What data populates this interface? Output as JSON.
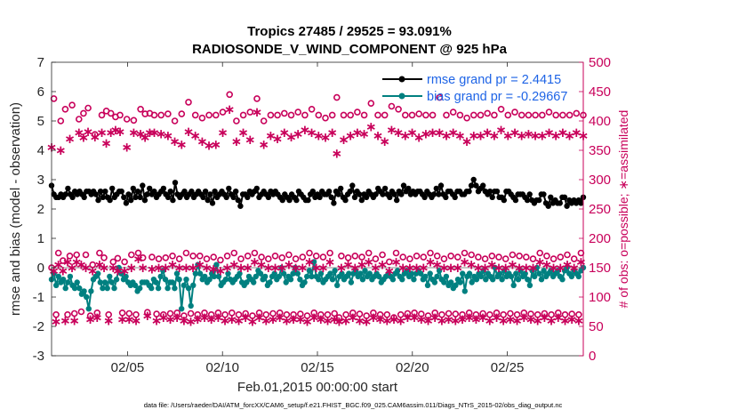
{
  "chart_data": {
    "type": "line",
    "title": "Tropics 27485 / 29525 = 93.091%",
    "subtitle": "RADIOSONDE_V_WIND_COMPONENT @ 925 hPa",
    "xlabel": "Feb.01,2015 00:00:00 start",
    "ylabel": "rmse and bias (model - observation)",
    "y2label": "# of obs: o=possible; ∗=assimilated",
    "xlim": [
      1,
      29
    ],
    "ylim": [
      -3,
      7
    ],
    "y2lim": [
      0,
      500
    ],
    "xticks": [
      5,
      10,
      15,
      20,
      25
    ],
    "xtick_labels": [
      "02/05",
      "02/10",
      "02/15",
      "02/20",
      "02/25"
    ],
    "yticks": [
      -3,
      -2,
      -1,
      0,
      1,
      2,
      3,
      4,
      5,
      6,
      7
    ],
    "y2ticks": [
      0,
      50,
      100,
      150,
      200,
      250,
      300,
      350,
      400,
      450,
      500
    ],
    "zero_line": 0,
    "legend": [
      {
        "label": "rmse grand pr = 2.4415",
        "color": "#000000"
      },
      {
        "label": "bias grand pr = -0.29667",
        "color": "#008080"
      }
    ],
    "series": [
      {
        "name": "rmse",
        "color": "#000000",
        "axis": "left",
        "values": [
          2.8,
          2.5,
          2.4,
          2.4,
          2.5,
          2.4,
          2.5,
          2.7,
          2.5,
          2.4,
          2.6,
          2.5,
          2.6,
          2.5,
          2.4,
          2.6,
          2.6,
          2.5,
          2.6,
          2.5,
          2.3,
          2.6,
          2.4,
          2.6,
          2.4,
          2.3,
          2.7,
          2.4,
          2.5,
          2.6,
          2.6,
          2.4,
          2.2,
          2.5,
          2.3,
          2.7,
          2.4,
          2.6,
          2.4,
          2.8,
          2.3,
          2.5,
          2.7,
          2.5,
          2.6,
          2.4,
          2.5,
          2.6,
          2.7,
          2.5,
          2.4,
          2.6,
          2.3,
          2.9,
          2.5,
          2.4,
          2.5,
          2.6,
          2.4,
          2.5,
          2.6,
          2.4,
          2.5,
          2.6,
          2.5,
          2.4,
          2.6,
          2.3,
          2.5,
          2.2,
          2.6,
          2.4,
          2.5,
          2.6,
          2.5,
          2.4,
          2.7,
          2.5,
          2.4,
          2.6,
          2.3,
          2.1,
          2.5,
          2.5,
          2.4,
          2.6,
          2.5,
          2.6,
          2.7,
          2.4,
          2.5,
          2.6,
          2.5,
          2.4,
          2.6,
          2.5,
          2.6,
          2.5,
          2.4,
          2.3,
          2.5,
          2.4,
          2.3,
          2.5,
          2.4,
          2.3,
          2.6,
          2.5,
          2.4,
          2.3,
          2.3,
          2.5,
          2.6,
          2.4,
          2.5,
          2.4,
          2.6,
          2.5,
          2.5,
          2.6,
          2.4,
          2.2,
          2.6,
          2.5,
          2.7,
          2.4,
          2.3,
          2.5,
          2.6,
          2.8,
          2.4,
          2.6,
          2.5,
          2.3,
          2.5,
          2.4,
          2.6,
          2.5,
          2.4,
          2.5,
          2.7,
          2.6,
          2.5,
          2.7,
          2.5,
          2.4,
          2.6,
          2.5,
          2.3,
          2.6,
          2.5,
          2.8,
          2.6,
          2.7,
          2.5,
          2.6,
          2.5,
          2.6,
          2.6,
          2.5,
          2.4,
          2.6,
          2.5,
          2.4,
          2.5,
          2.7,
          2.5,
          2.8,
          2.5,
          2.4,
          2.6,
          2.6,
          2.5,
          2.4,
          2.6,
          2.6,
          2.5,
          2.5,
          2.6,
          2.6,
          2.8,
          3.0,
          2.8,
          2.6,
          2.7,
          2.8,
          2.6,
          2.5,
          2.6,
          2.4,
          2.6,
          2.6,
          2.4,
          2.4,
          2.3,
          2.6,
          2.6,
          2.5,
          2.4,
          2.3,
          2.5,
          2.5,
          2.5,
          2.4,
          2.3,
          2.5,
          2.3,
          2.2,
          2.3,
          2.3,
          2.5,
          2.5,
          2.2,
          2.1,
          2.4,
          2.2,
          2.3,
          2.2,
          2.2,
          2.4,
          2.4,
          2.1,
          2.3,
          2.2,
          2.3,
          2.2,
          2.3,
          2.2,
          2.4
        ]
      },
      {
        "name": "bias",
        "color": "#008080",
        "axis": "left",
        "values": [
          -0.4,
          -0.2,
          -0.6,
          -0.3,
          -0.5,
          -0.4,
          -0.7,
          -0.5,
          -0.3,
          -0.6,
          -0.7,
          -0.5,
          -0.7,
          -0.9,
          -0.8,
          -1.0,
          -1.4,
          -0.8,
          -0.4,
          -0.3,
          -0.2,
          -0.5,
          -0.7,
          -0.5,
          -0.7,
          -0.3,
          -0.5,
          -0.7,
          -0.4,
          0.0,
          -0.2,
          -0.4,
          -0.3,
          -0.5,
          -0.6,
          -0.5,
          -0.6,
          -0.8,
          -0.7,
          -0.5,
          -0.5,
          -0.5,
          -0.6,
          -0.7,
          -0.4,
          -0.5,
          -0.7,
          -0.3,
          -0.1,
          -0.4,
          -0.7,
          -0.5,
          -0.5,
          -0.7,
          -0.2,
          -0.4,
          -1.4,
          -0.6,
          -0.4,
          -0.7,
          -1.3,
          -0.6,
          -0.2,
          0.1,
          -0.2,
          -0.4,
          -0.3,
          -0.5,
          -0.4,
          -0.2,
          -0.3,
          0.1,
          -0.3,
          -0.6,
          -0.5,
          -0.4,
          -0.2,
          -0.4,
          -0.5,
          -0.4,
          -0.3,
          -0.2,
          -0.5,
          -0.6,
          -0.5,
          -0.3,
          -0.4,
          -0.5,
          -0.3,
          -0.1,
          -0.2,
          -0.4,
          -0.3,
          -0.6,
          -0.5,
          -0.3,
          -0.2,
          -0.4,
          -0.3,
          0.0,
          -0.2,
          -0.5,
          -0.3,
          -0.4,
          -0.2,
          0.0,
          -0.2,
          -0.4,
          -0.6,
          -0.5,
          -0.3,
          -0.1,
          -0.3,
          0.2,
          -0.3,
          -0.4,
          -0.2,
          -0.5,
          -0.4,
          -0.3,
          -0.2,
          -0.4,
          -0.1,
          -0.6,
          -0.3,
          -0.2,
          -0.4,
          -0.3,
          -0.2,
          -0.5,
          -0.2,
          -0.1,
          -0.3,
          -0.2,
          -0.4,
          -0.1,
          -0.3,
          -0.2,
          -0.4,
          -0.3,
          -0.2,
          -0.3,
          -0.5,
          -0.4,
          -0.3,
          -0.2,
          -0.3,
          -0.4,
          -0.2,
          -0.1,
          -0.3,
          -0.4,
          -0.2,
          -0.1,
          -0.3,
          -0.2,
          -0.4,
          -0.2,
          -0.1,
          -0.2,
          -0.4,
          -0.3,
          -0.6,
          -0.2,
          -0.4,
          -0.5,
          -0.3,
          -0.1,
          -0.4,
          -0.5,
          -0.3,
          -0.6,
          -0.5,
          -0.7,
          -0.6,
          -0.4,
          -0.5,
          -0.2,
          -0.8,
          -0.3,
          -0.2,
          -0.5,
          -0.3,
          -0.4,
          -0.2,
          -0.3,
          -0.1,
          -0.4,
          -0.2,
          -0.3,
          -0.4,
          0.0,
          -0.3,
          -0.2,
          -0.4,
          -0.1,
          -0.3,
          -0.2,
          -0.3,
          -0.6,
          -0.2,
          -0.4,
          -0.1,
          -0.3,
          -0.2,
          -0.4,
          -0.6,
          -0.1,
          -0.3,
          0.0,
          -0.2,
          -0.4,
          -0.1,
          -0.3,
          -0.2,
          -0.1,
          -0.3,
          -0.2,
          -0.1,
          -0.3,
          -0.4,
          -0.1,
          0.0,
          -0.2,
          -0.3,
          -0.1,
          -0.2,
          -0.3,
          -0.1,
          0.0
        ]
      },
      {
        "name": "possible (o)",
        "color": "#c8005a",
        "axis": "right",
        "marker": "o",
        "cadence_days": 0.25,
        "values": [
          150,
          438,
          70,
          175,
          400,
          162,
          420,
          70,
          170,
          427,
          72,
          172,
          403,
          75,
          413,
          172,
          422,
          68,
          155,
          377,
          73,
          175,
          410,
          167,
          417,
          70,
          413,
          160,
          407,
          166,
          410,
          73,
          160,
          403,
          72,
          172,
          401,
          70,
          175,
          420,
          167,
          412,
          74,
          413,
          168,
          410,
          71,
          165,
          410,
          70,
          167,
          412,
          72,
          170,
          400,
          73,
          165,
          412,
          68,
          175,
          432,
          72,
          170,
          410,
          70,
          170,
          405,
          73,
          165,
          410,
          70,
          168,
          410,
          73,
          163,
          415,
          70,
          170,
          445,
          73,
          175,
          400,
          70,
          165,
          410,
          72,
          170,
          415,
          68,
          175,
          438,
          73,
          168,
          400,
          70,
          165,
          410,
          72,
          170,
          410,
          73,
          167,
          413,
          70,
          172,
          410,
          70,
          165,
          415,
          71,
          168,
          410,
          68,
          175,
          420,
          73,
          170,
          410,
          70,
          168,
          405,
          70,
          175,
          410,
          72,
          440,
          65,
          170,
          410,
          70,
          167,
          410,
          73,
          170,
          415,
          71,
          168,
          410,
          68,
          175,
          430,
          73,
          165,
          410,
          70,
          172,
          410,
          70,
          160,
          425,
          65,
          175,
          420,
          70,
          168,
          410,
          72,
          165,
          410,
          73,
          170,
          412,
          71,
          168,
          410,
          68,
          175,
          410,
          73,
          170,
          440,
          70,
          165,
          410,
          72,
          170,
          415,
          71,
          168,
          410,
          70,
          175,
          405,
          73,
          172,
          410,
          70,
          168,
          410,
          72,
          165,
          413,
          70,
          170,
          410,
          73,
          168,
          420,
          70,
          165,
          410,
          72,
          172,
          415,
          70,
          170,
          410,
          73,
          168,
          410,
          71,
          165,
          410,
          70,
          175,
          410,
          72,
          170,
          415,
          70,
          165,
          410,
          73,
          168,
          410,
          70,
          172,
          410,
          71,
          165,
          413,
          70,
          175,
          410
        ]
      },
      {
        "name": "assimilated (*)",
        "color": "#c8005a",
        "axis": "right",
        "marker": "*",
        "cadence_days": 0.25,
        "values": [
          355,
          145,
          58,
          155,
          350,
          145,
          60,
          160,
          370,
          150,
          60,
          160,
          380,
          155,
          372,
          150,
          382,
          62,
          145,
          373,
          65,
          155,
          380,
          150,
          362,
          60,
          380,
          150,
          385,
          145,
          382,
          62,
          145,
          355,
          62,
          150,
          380,
          60,
          165,
          378,
          150,
          372,
          68,
          380,
          148,
          380,
          60,
          150,
          378,
          65,
          150,
          375,
          62,
          155,
          365,
          65,
          150,
          360,
          60,
          150,
          382,
          58,
          150,
          375,
          62,
          155,
          365,
          65,
          150,
          358,
          62,
          148,
          360,
          65,
          145,
          380,
          60,
          150,
          420,
          62,
          155,
          365,
          60,
          150,
          380,
          65,
          150,
          368,
          58,
          160,
          415,
          65,
          155,
          360,
          60,
          150,
          375,
          62,
          150,
          370,
          65,
          150,
          380,
          60,
          155,
          373,
          62,
          150,
          378,
          62,
          150,
          385,
          58,
          160,
          380,
          65,
          150,
          375,
          62,
          150,
          372,
          60,
          160,
          380,
          62,
          345,
          58,
          150,
          368,
          60,
          155,
          375,
          65,
          150,
          380,
          60,
          155,
          378,
          58,
          160,
          390,
          65,
          150,
          375,
          62,
          155,
          365,
          60,
          145,
          385,
          62,
          160,
          380,
          60,
          150,
          375,
          65,
          150,
          380,
          65,
          150,
          372,
          62,
          150,
          378,
          60,
          160,
          380,
          65,
          155,
          380,
          60,
          150,
          375,
          62,
          150,
          380,
          60,
          150,
          375,
          62,
          160,
          365,
          65,
          155,
          375,
          62,
          150,
          375,
          65,
          150,
          380,
          60,
          155,
          375,
          65,
          150,
          385,
          60,
          150,
          375,
          62,
          155,
          380,
          60,
          150,
          375,
          65,
          150,
          378,
          62,
          150,
          375,
          60,
          160,
          375,
          65,
          155,
          380,
          60,
          150,
          375,
          65,
          150,
          380,
          60,
          155,
          375,
          62,
          150,
          380,
          60,
          160,
          375
        ]
      }
    ],
    "footer": "data file: /Users/raeder/DAI/ATM_forcXX/CAM6_setup/f.e21.FHIST_BGC.f09_025.CAM6assim.011/Diags_NTrS_2015-02/obs_diag_output.nc"
  }
}
